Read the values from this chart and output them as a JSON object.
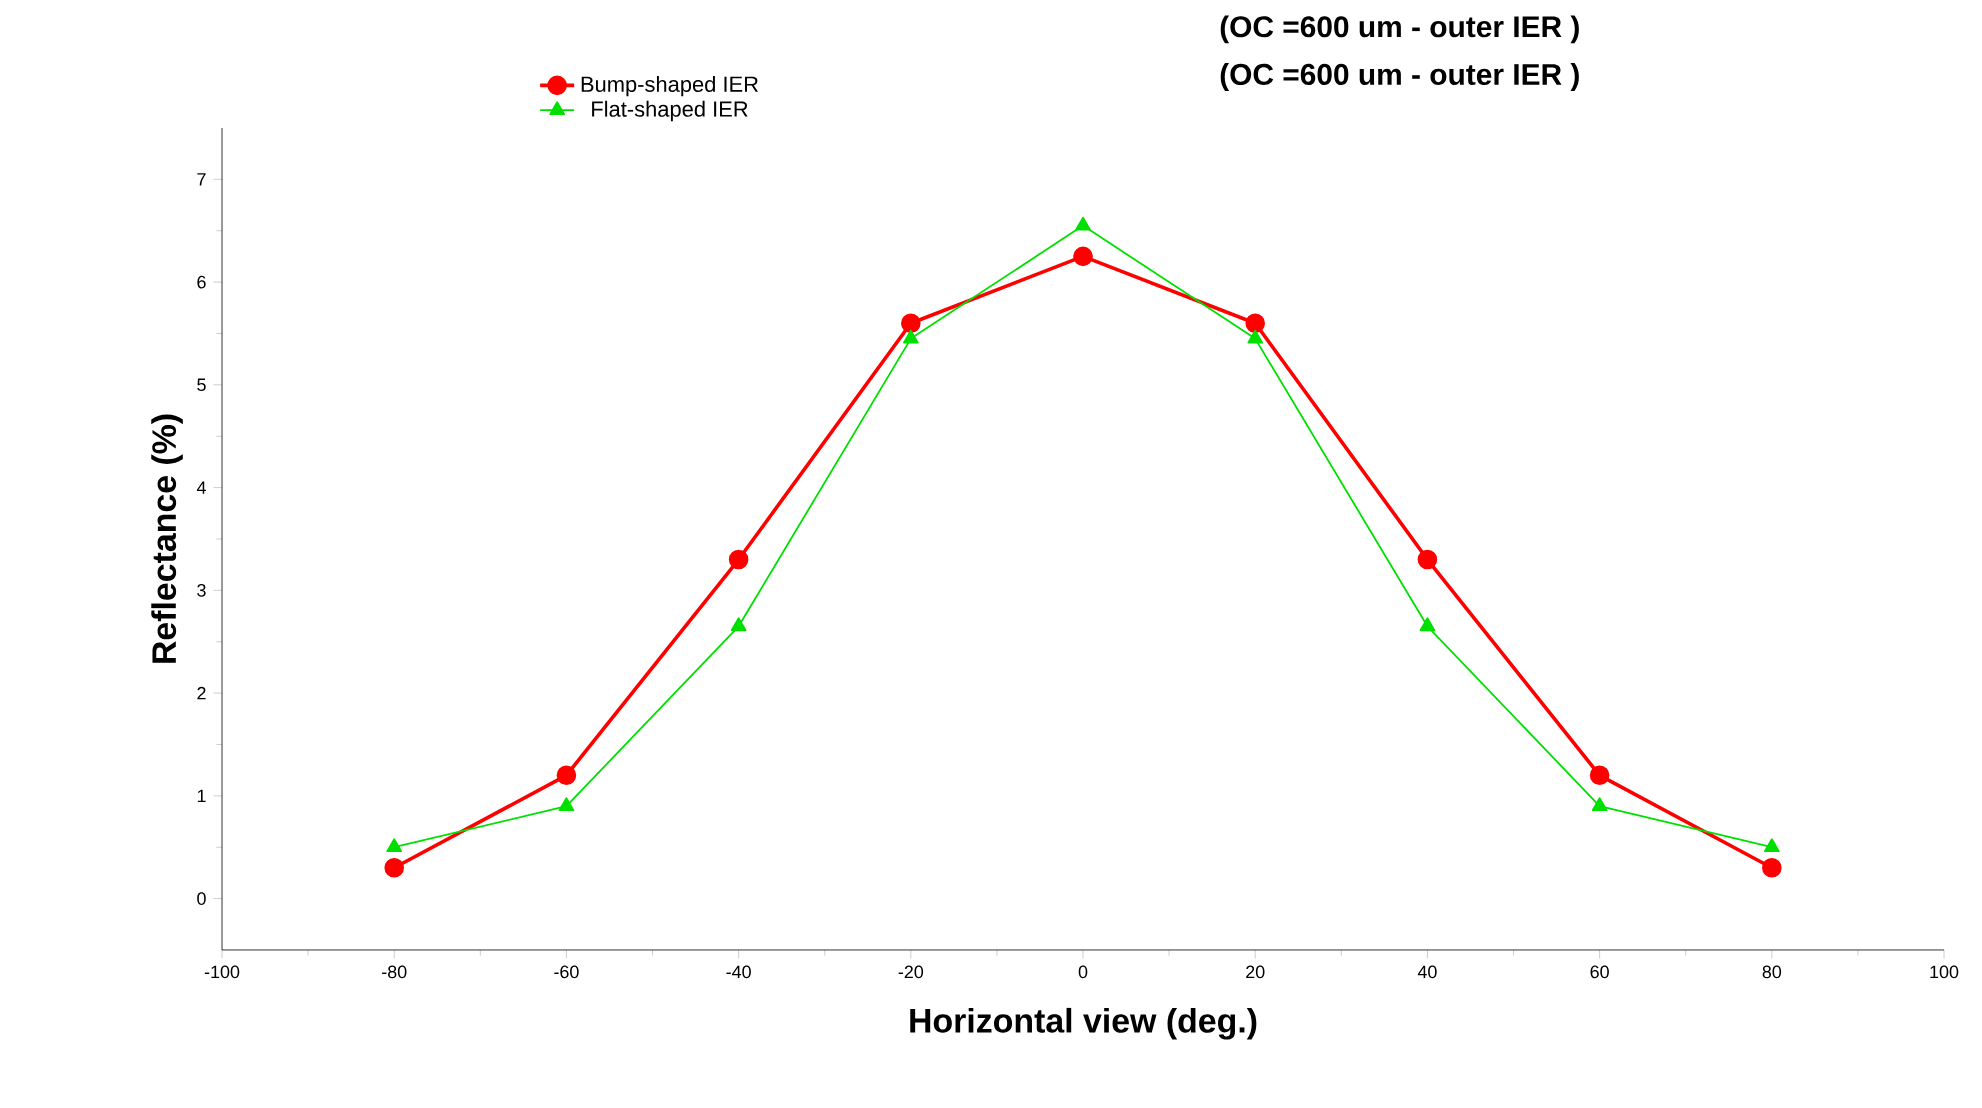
{
  "chart_data": {
    "type": "line",
    "xlabel": "Horizontal view (deg.)",
    "ylabel": "Reflectance (%)",
    "x": [
      -80,
      -60,
      -40,
      -20,
      0,
      20,
      40,
      60,
      80
    ],
    "series": [
      {
        "name": "Bump-shaped IER",
        "color": "#ff0000",
        "marker": "circle",
        "values": [
          0.3,
          1.2,
          3.3,
          5.6,
          6.25,
          5.6,
          3.3,
          1.2,
          0.3
        ]
      },
      {
        "name": "Flat-shaped IER",
        "color": "#00e000",
        "marker": "triangle",
        "values": [
          0.5,
          0.9,
          2.65,
          5.45,
          6.55,
          5.45,
          2.65,
          0.9,
          0.5
        ]
      }
    ],
    "annotations": [
      "(OC =600 um  -  outer IER )",
      "(OC =600 um  -  outer IER )"
    ],
    "xlim": [
      -100,
      100
    ],
    "xticks": [
      -100,
      -80,
      -60,
      -40,
      -20,
      0,
      20,
      40,
      60,
      80,
      100
    ],
    "ylim": [
      -0.5,
      7.5
    ],
    "yticks": [
      0,
      1,
      2,
      3,
      4,
      5,
      6,
      7
    ],
    "grid": false,
    "legend": "top",
    "line_style": "solid"
  }
}
